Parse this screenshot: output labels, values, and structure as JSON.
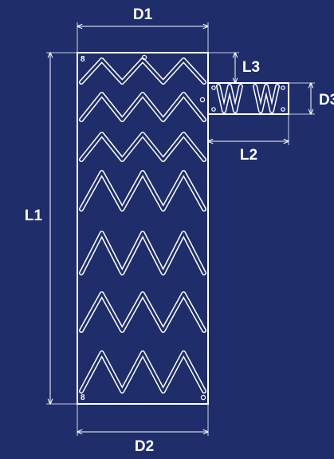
{
  "labels": {
    "d1": "D1",
    "d2": "D2",
    "d3": "D3",
    "l1": "L1",
    "l2": "L2",
    "l3": "L3"
  },
  "marker_text": "8",
  "colors": {
    "background": "#1f2d6b",
    "line": "#ffffff"
  }
}
